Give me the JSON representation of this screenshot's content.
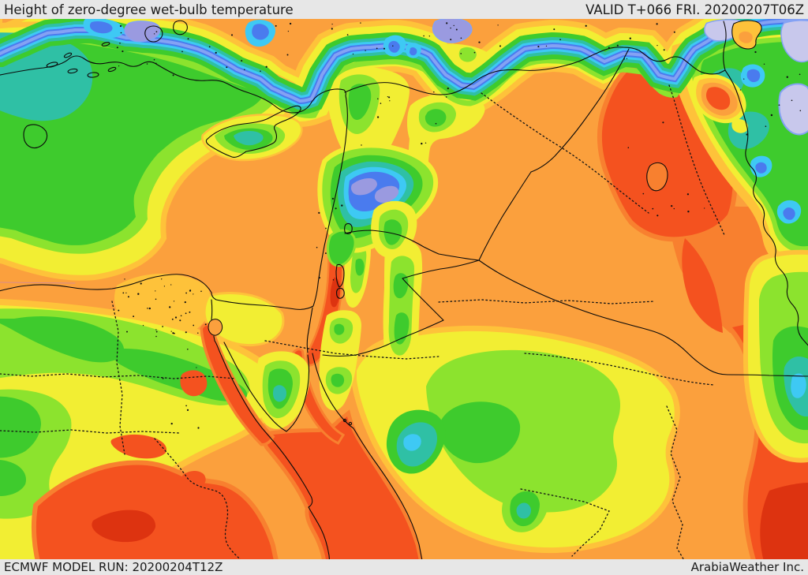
{
  "header": {
    "title": "Height of zero-degree wet-bulb temperature",
    "valid": "VALID T+066 FRI. 20200207T06Z"
  },
  "footer": {
    "model_run": "ECMWF MODEL RUN: 20200204T12Z",
    "credit": "ArabiaWeather Inc."
  },
  "colors": {
    "bar": "#e7e7e7",
    "ink": "#1a1a1a",
    "lavender": "#c8c8ec",
    "periwinkle": "#9a9ae0",
    "lightblue": "#84a2f4",
    "blue": "#4a7bee",
    "cyan": "#3ec9f4",
    "teal": "#2fc0a5",
    "green": "#3ecb2d",
    "lightgreen": "#8ce32e",
    "yellow": "#f2ee33",
    "amber": "#fec23a",
    "orange": "#fba03d",
    "darkorange": "#f8802f",
    "redorange": "#f4521f",
    "deepred": "#dd3310"
  }
}
